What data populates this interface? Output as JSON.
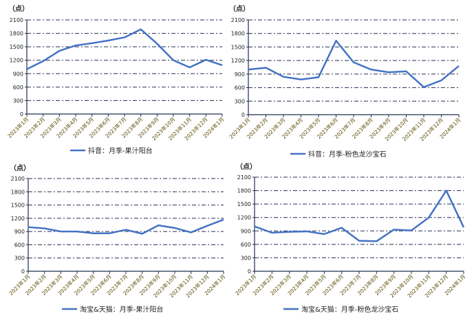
{
  "colors": {
    "line": "#4472C4",
    "grid": "#1F2D4D",
    "axis": "#1F2D4D",
    "tick_text": "#5A4A00"
  },
  "chart_data": [
    {
      "type": "line",
      "unit_label": "（点）",
      "categories": [
        "2023年1月",
        "2023年2月",
        "2023年3月",
        "2023年4月",
        "2023年5月",
        "2023年6月",
        "2023年7月",
        "2023年8月",
        "2023年9月",
        "2023年10月",
        "2023年11月",
        "2023年12月",
        "2024年1月"
      ],
      "series": [
        {
          "name": "抖音：月季-果汁阳台",
          "values": [
            1000,
            1180,
            1410,
            1530,
            1580,
            1640,
            1710,
            1890,
            1570,
            1200,
            1040,
            1210,
            1090
          ]
        }
      ],
      "ylim": [
        0,
        2100
      ],
      "yticks": [
        "0",
        "300",
        "600",
        "900",
        "1200",
        "1500",
        "1800",
        "2100"
      ],
      "grid": true,
      "legend": "bottom"
    },
    {
      "type": "line",
      "unit_label": "（点）",
      "categories": [
        "2023年1月",
        "2023年2月",
        "2023年3月",
        "2023年4月",
        "2023年5月",
        "2023年6月",
        "2023年7月",
        "2023年8月",
        "2023年9月",
        "2023年10月",
        "2023年11月",
        "2023年12月",
        "2024年1月"
      ],
      "series": [
        {
          "name": "抖音：月季-粉色龙沙宝石",
          "values": [
            1000,
            1040,
            840,
            780,
            830,
            1640,
            1160,
            1000,
            940,
            960,
            610,
            760,
            1080
          ]
        }
      ],
      "ylim": [
        0,
        2100
      ],
      "yticks": [
        "0",
        "300",
        "600",
        "900",
        "1200",
        "1500",
        "1800",
        "2100"
      ],
      "grid": true,
      "legend": "bottom"
    },
    {
      "type": "line",
      "unit_label": "（点）",
      "categories": [
        "2023年1月",
        "2023年2月",
        "2023年3月",
        "2023年4月",
        "2023年5月",
        "2023年6月",
        "2023年7月",
        "2023年8月",
        "2023年9月",
        "2023年10月",
        "2023年11月",
        "2023年12月",
        "2024年1月"
      ],
      "series": [
        {
          "name": "淘宝&天猫：月季-果汁阳台",
          "values": [
            1000,
            970,
            900,
            900,
            860,
            860,
            940,
            850,
            1040,
            980,
            880,
            1030,
            1170
          ]
        }
      ],
      "ylim": [
        0,
        2100
      ],
      "yticks": [
        "0",
        "300",
        "600",
        "900",
        "1200",
        "1500",
        "1800",
        "2100"
      ],
      "grid": true,
      "legend": "bottom"
    },
    {
      "type": "line",
      "unit_label": "（点）",
      "categories": [
        "2023年1月",
        "2023年2月",
        "2023年3月",
        "2023年4月",
        "2023年5月",
        "2023年6月",
        "2023年7月",
        "2023年8月",
        "2023年9月",
        "2023年10月",
        "2023年11月",
        "2023年12月",
        "2024年1月"
      ],
      "series": [
        {
          "name": "淘宝&天猫：月季-粉色龙沙宝石",
          "values": [
            1000,
            860,
            880,
            890,
            830,
            970,
            680,
            670,
            930,
            910,
            1200,
            1800,
            980
          ]
        }
      ],
      "ylim": [
        0,
        2100
      ],
      "yticks": [
        "0",
        "300",
        "600",
        "900",
        "1200",
        "1500",
        "1800",
        "2100"
      ],
      "grid": true,
      "legend": "bottom"
    }
  ]
}
